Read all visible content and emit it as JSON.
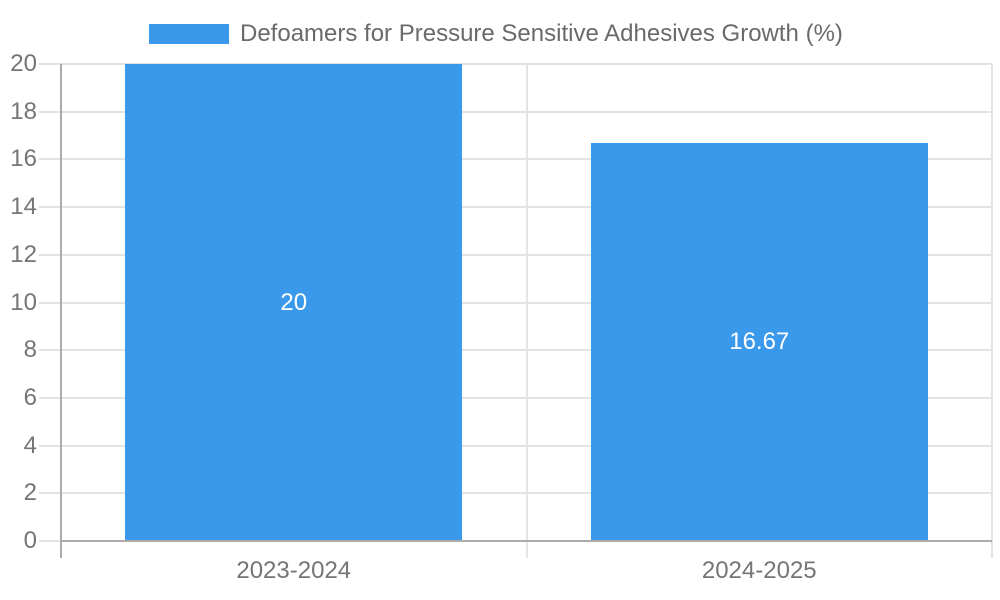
{
  "chart_data": {
    "type": "bar",
    "title": "",
    "legend": {
      "label": "Defoamers for Pressure Sensitive Adhesives Growth (%)",
      "position": "top"
    },
    "categories": [
      "2023-2024",
      "2024-2025"
    ],
    "series": [
      {
        "name": "Defoamers for Pressure Sensitive Adhesives Growth (%)",
        "values": [
          20,
          16.67
        ],
        "data_labels": [
          "20",
          "16.67"
        ]
      }
    ],
    "xlabel": "",
    "ylabel": "",
    "ylim": [
      0,
      20
    ],
    "yticks": [
      0,
      2,
      4,
      6,
      8,
      10,
      12,
      14,
      16,
      18,
      20
    ],
    "grid": true,
    "legend_swatch_color": "#3B99EC"
  },
  "colors": {
    "bar": "#3B99EC",
    "grid_line": "#E3E3E3",
    "axis_line": "#ABABAB",
    "tick_label": "#757575",
    "legend_text": "#6A6A6A",
    "data_label": "#FFFFFF",
    "background": "#FFFFFF"
  }
}
